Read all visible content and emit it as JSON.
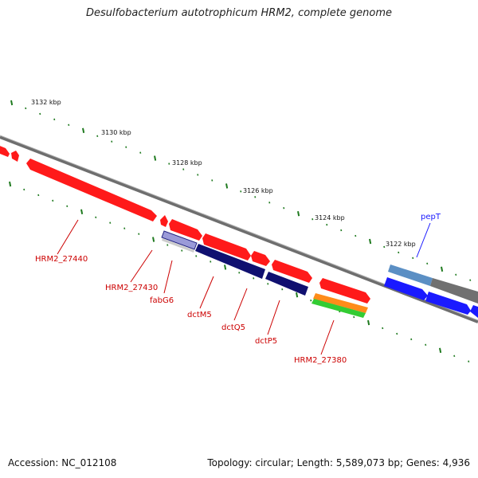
{
  "title": "Desulfobacterium autotrophicum HRM2, complete genome",
  "footer": {
    "accession": "Accession: NC_012108",
    "topology": "Topology: circular; Length: 5,589,073 bp; Genes: 4,936"
  },
  "kbp_labels": [
    "3132 kbp",
    "3130 kbp",
    "3128 kbp",
    "3126 kbp",
    "3124 kbp",
    "3122 kbp"
  ],
  "gene_labels": [
    "HRM2_27440",
    "HRM2_27430",
    "fabG6",
    "dctM5",
    "dctQ5",
    "dctP5",
    "HRM2_27380",
    "pepT"
  ],
  "colors": {
    "backbone": "#7a7a7a",
    "tick": "#1f7a1f",
    "forward_gene": "#ff1a1a",
    "reverse_gene": "#1a1aff",
    "navy_feature": "#101070",
    "lavender_feature": "#9a9ad8",
    "orange_feature": "#ff8c1a",
    "green_feature": "#33cc33",
    "steel_feature": "#5b8fc4",
    "gray_feature": "#707070",
    "label_red": "#cc0000",
    "label_blue": "#1a1aff"
  }
}
